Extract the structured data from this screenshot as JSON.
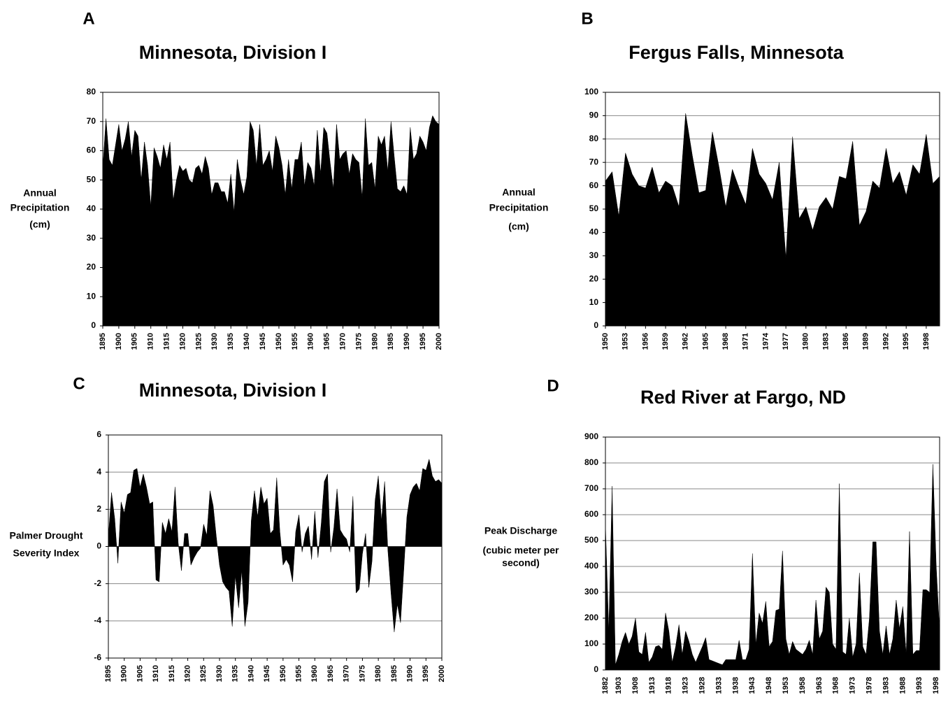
{
  "chart_data": [
    {
      "type": "area",
      "label": "A",
      "title": "Minnesota, Division I",
      "y_label": [
        "Annual",
        "Precipitation",
        "(cm)"
      ],
      "color": "#000000",
      "grid": true,
      "x": [
        1895,
        1896,
        1897,
        1898,
        1899,
        1900,
        1901,
        1902,
        1903,
        1904,
        1905,
        1906,
        1907,
        1908,
        1909,
        1910,
        1911,
        1912,
        1913,
        1914,
        1915,
        1916,
        1917,
        1918,
        1919,
        1920,
        1921,
        1922,
        1923,
        1924,
        1925,
        1926,
        1927,
        1928,
        1929,
        1930,
        1931,
        1932,
        1933,
        1934,
        1935,
        1936,
        1937,
        1938,
        1939,
        1940,
        1941,
        1942,
        1943,
        1944,
        1945,
        1946,
        1947,
        1948,
        1949,
        1950,
        1951,
        1952,
        1953,
        1954,
        1955,
        1956,
        1957,
        1958,
        1959,
        1960,
        1961,
        1962,
        1963,
        1964,
        1965,
        1966,
        1967,
        1968,
        1969,
        1970,
        1971,
        1972,
        1973,
        1974,
        1975,
        1976,
        1977,
        1978,
        1979,
        1980,
        1981,
        1982,
        1983,
        1984,
        1985,
        1986,
        1987,
        1988,
        1989,
        1990,
        1991,
        1992,
        1993,
        1994,
        1995,
        1996,
        1997,
        1998,
        1999,
        2000
      ],
      "values": [
        54,
        71,
        57,
        55,
        62,
        69,
        60,
        64,
        70,
        58,
        67,
        65,
        50,
        63,
        55,
        41,
        61,
        58,
        54,
        62,
        57,
        63,
        43,
        50,
        55,
        53,
        54,
        50,
        49,
        54,
        55,
        52,
        58,
        54,
        45,
        49,
        49,
        46,
        46,
        42,
        52,
        39,
        57,
        50,
        45,
        51,
        70,
        67,
        55,
        69,
        55,
        57,
        60,
        53,
        65,
        61,
        55,
        45,
        57,
        47,
        57,
        57,
        63,
        48,
        56,
        54,
        48,
        67,
        52,
        68,
        66,
        56,
        47,
        69,
        57,
        59,
        60,
        52,
        59,
        57,
        56,
        44,
        71,
        55,
        56,
        47,
        65,
        62,
        65,
        53,
        70,
        58,
        47,
        46,
        48,
        45,
        68,
        57,
        59,
        65,
        63,
        60,
        68,
        72,
        70,
        69
      ],
      "xlim": [
        1895,
        2000
      ],
      "xticks": [
        1895,
        1900,
        1905,
        1910,
        1915,
        1920,
        1925,
        1930,
        1935,
        1940,
        1945,
        1950,
        1955,
        1960,
        1965,
        1970,
        1975,
        1980,
        1985,
        1990,
        1995,
        2000
      ],
      "ylim": [
        0,
        80
      ],
      "yticks": [
        0,
        10,
        20,
        30,
        40,
        50,
        60,
        70,
        80
      ]
    },
    {
      "type": "area",
      "label": "B",
      "title": "Fergus Falls, Minnesota",
      "y_label": [
        "Annual",
        "Precipitation",
        "(cm)"
      ],
      "color": "#000000",
      "grid": true,
      "x": [
        1950,
        1951,
        1952,
        1953,
        1954,
        1955,
        1956,
        1957,
        1958,
        1959,
        1960,
        1961,
        1962,
        1963,
        1964,
        1965,
        1966,
        1967,
        1968,
        1969,
        1970,
        1971,
        1972,
        1973,
        1974,
        1975,
        1976,
        1977,
        1978,
        1979,
        1980,
        1981,
        1982,
        1983,
        1984,
        1985,
        1986,
        1987,
        1988,
        1989,
        1990,
        1991,
        1992,
        1993,
        1994,
        1995,
        1996,
        1997,
        1998,
        1999,
        2000
      ],
      "values": [
        62,
        66,
        47,
        74,
        65,
        60,
        59,
        68,
        57,
        62,
        60,
        51,
        91,
        73,
        57,
        58,
        83,
        68,
        51,
        67,
        59,
        52,
        76,
        65,
        61,
        54,
        70,
        29,
        81,
        46,
        51,
        41,
        51,
        55,
        50,
        64,
        63,
        79,
        43,
        49,
        62,
        59,
        76,
        61,
        66,
        56,
        69,
        65,
        82,
        61,
        64
      ],
      "xlim": [
        1950,
        2000
      ],
      "xticks": [
        1950,
        1953,
        1956,
        1959,
        1962,
        1965,
        1968,
        1971,
        1974,
        1977,
        1980,
        1983,
        1986,
        1989,
        1992,
        1995,
        1998
      ],
      "ylim": [
        0,
        100
      ],
      "yticks": [
        0,
        10,
        20,
        30,
        40,
        50,
        60,
        70,
        80,
        90,
        100
      ]
    },
    {
      "type": "area",
      "label": "C",
      "title": "Minnesota, Division I",
      "y_label": [
        "Palmer Drought",
        "Severity Index"
      ],
      "color": "#000000",
      "grid": true,
      "x": [
        1895,
        1896,
        1897,
        1898,
        1899,
        1900,
        1901,
        1902,
        1903,
        1904,
        1905,
        1906,
        1907,
        1908,
        1909,
        1910,
        1911,
        1912,
        1913,
        1914,
        1915,
        1916,
        1917,
        1918,
        1919,
        1920,
        1921,
        1922,
        1923,
        1924,
        1925,
        1926,
        1927,
        1928,
        1929,
        1930,
        1931,
        1932,
        1933,
        1934,
        1935,
        1936,
        1937,
        1938,
        1939,
        1940,
        1941,
        1942,
        1943,
        1944,
        1945,
        1946,
        1947,
        1948,
        1949,
        1950,
        1951,
        1952,
        1953,
        1954,
        1955,
        1956,
        1957,
        1958,
        1959,
        1960,
        1961,
        1962,
        1963,
        1964,
        1965,
        1966,
        1967,
        1968,
        1969,
        1970,
        1971,
        1972,
        1973,
        1974,
        1975,
        1976,
        1977,
        1978,
        1979,
        1980,
        1981,
        1982,
        1983,
        1984,
        1985,
        1986,
        1987,
        1988,
        1989,
        1990,
        1991,
        1992,
        1993,
        1994,
        1995,
        1996,
        1997,
        1998,
        1999,
        2000
      ],
      "values": [
        0.5,
        2.9,
        1.5,
        -0.9,
        2.4,
        1.8,
        2.8,
        2.9,
        4.1,
        4.2,
        3.2,
        3.9,
        3.2,
        2.3,
        2.4,
        -1.8,
        -1.9,
        1.3,
        0.7,
        1.5,
        0.8,
        3.2,
        0.2,
        -1.3,
        0.7,
        0.7,
        -1.0,
        -0.6,
        -0.3,
        -0.1,
        1.2,
        0.6,
        3.0,
        2.2,
        0.5,
        -1.0,
        -1.9,
        -2.2,
        -2.4,
        -4.3,
        -1.6,
        -3.3,
        -1.3,
        -4.3,
        -3.0,
        1.4,
        3.0,
        1.6,
        3.2,
        2.3,
        2.6,
        0.7,
        0.9,
        3.7,
        0.8,
        -1.0,
        -0.7,
        -1.0,
        -1.9,
        0.8,
        1.7,
        -0.3,
        0.7,
        1.1,
        -0.7,
        1.9,
        -0.6,
        1.2,
        3.5,
        3.9,
        -0.3,
        1.0,
        3.1,
        0.9,
        0.6,
        0.4,
        -0.3,
        2.7,
        -2.5,
        -2.3,
        -0.4,
        0.7,
        -2.2,
        -0.8,
        2.5,
        3.8,
        1.4,
        3.5,
        -0.2,
        -2.5,
        -4.6,
        -3.1,
        -4.1,
        -1.3,
        1.6,
        2.8,
        3.2,
        3.4,
        3.0,
        4.2,
        4.1,
        4.7,
        3.8,
        3.5,
        3.6,
        3.4
      ],
      "xlim": [
        1895,
        2000
      ],
      "xticks": [
        1895,
        1900,
        1905,
        1910,
        1915,
        1920,
        1925,
        1930,
        1935,
        1940,
        1945,
        1950,
        1955,
        1960,
        1965,
        1970,
        1975,
        1980,
        1985,
        1990,
        1995,
        2000
      ],
      "ylim": [
        -6,
        6
      ],
      "yticks": [
        -6,
        -4,
        -2,
        0,
        2,
        4,
        6
      ]
    },
    {
      "type": "area",
      "label": "D",
      "title": "Red River at Fargo, ND",
      "y_label": [
        "Peak Discharge",
        "(cubic meter per",
        "second)"
      ],
      "color": "#000000",
      "grid": true,
      "categories": [
        "1882",
        null,
        null,
        null,
        "1903",
        null,
        null,
        null,
        null,
        "1908",
        null,
        null,
        null,
        null,
        "1913",
        null,
        null,
        null,
        null,
        "1918",
        null,
        null,
        null,
        null,
        "1923",
        null,
        null,
        null,
        null,
        "1928",
        null,
        null,
        null,
        null,
        "1933",
        null,
        null,
        null,
        null,
        "1938",
        null,
        null,
        null,
        null,
        "1943",
        null,
        null,
        null,
        null,
        "1948",
        null,
        null,
        null,
        null,
        "1953",
        null,
        null,
        null,
        null,
        "1958",
        null,
        null,
        null,
        null,
        "1963",
        null,
        null,
        null,
        null,
        "1968",
        null,
        null,
        null,
        null,
        "1973",
        null,
        null,
        null,
        null,
        "1978",
        null,
        null,
        null,
        null,
        "1983",
        null,
        null,
        null,
        null,
        "1988",
        null,
        null,
        null,
        null,
        "1993",
        null,
        null,
        null,
        null,
        "1998",
        null
      ],
      "values": [
        565,
        150,
        710,
        20,
        60,
        110,
        145,
        100,
        130,
        200,
        70,
        60,
        145,
        30,
        50,
        90,
        95,
        80,
        220,
        150,
        30,
        90,
        175,
        60,
        150,
        110,
        60,
        30,
        60,
        90,
        125,
        40,
        35,
        30,
        25,
        20,
        40,
        40,
        40,
        40,
        115,
        40,
        40,
        80,
        450,
        100,
        220,
        180,
        265,
        90,
        110,
        230,
        235,
        460,
        120,
        60,
        110,
        80,
        70,
        60,
        80,
        115,
        60,
        270,
        120,
        150,
        320,
        300,
        100,
        80,
        720,
        70,
        60,
        200,
        50,
        100,
        375,
        90,
        60,
        200,
        495,
        495,
        150,
        60,
        170,
        60,
        120,
        270,
        160,
        245,
        60,
        535,
        60,
        75,
        75,
        310,
        310,
        300,
        795,
        400,
        150
      ],
      "ylim": [
        0,
        900
      ],
      "yticks": [
        0,
        100,
        200,
        300,
        400,
        500,
        600,
        700,
        800,
        900
      ]
    }
  ]
}
